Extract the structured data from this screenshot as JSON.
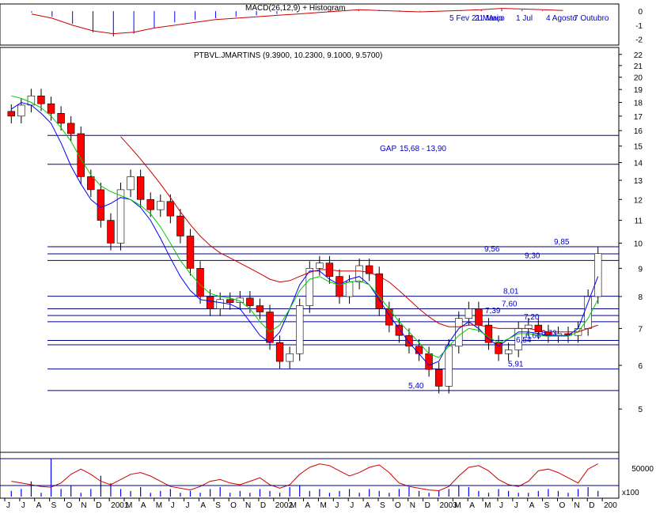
{
  "colors": {
    "up": "#ffffff",
    "down": "#ff0000",
    "outline": "#000000",
    "ma_blue": "#0000ff",
    "ma_green": "#00cc00",
    "ma_red": "#cc0000",
    "ma_magenta": "#cc00cc",
    "hline": "#00008b",
    "ann": "#0000cc",
    "volume": "#0000ff",
    "stoch_line": "#cc0000"
  },
  "chart_data": [
    {
      "type": "bar",
      "panel": "macd",
      "title": "MACD(26,12,9) + Histogram",
      "y_ticks": [
        "0",
        "-1",
        "-2"
      ],
      "y_tick_values": [
        0,
        -1,
        -2
      ],
      "ylim": [
        -2.3,
        0.4
      ],
      "overlay_text": [
        "5 Fev",
        "21 Março",
        "1 Jul",
        "4 Agosto",
        "7 Outubro",
        "21 Maio"
      ],
      "histogram": [
        -0.1,
        -0.4,
        -0.9,
        -1.5,
        -1.8,
        -1.6,
        -1.2,
        -0.8,
        -0.6,
        -0.5,
        -0.4,
        -0.3,
        -0.2,
        -0.1,
        0.0,
        0.05,
        0.1,
        0.08,
        0.05,
        0.03,
        0.02,
        0.05,
        0.1,
        0.15,
        0.1,
        0.05,
        0.0
      ],
      "macd_line": [
        -0.2,
        -0.5,
        -1.0,
        -1.4,
        -1.6,
        -1.5,
        -1.2,
        -1.0,
        -0.8,
        -0.6,
        -0.5,
        -0.4,
        -0.3,
        -0.2,
        -0.1,
        0.0,
        0.1,
        0.05,
        0.0,
        -0.05,
        0.0,
        0.05,
        0.1,
        0.2,
        0.15,
        0.1,
        0.05
      ]
    },
    {
      "type": "candlestick",
      "panel": "price",
      "title": "PTBVL.JMARTINS (9.3900, 10.2300, 9.1000, 9.5700)",
      "scale": "log",
      "ylim": [
        4.2,
        22.5
      ],
      "y_ticks": [
        "22",
        "21",
        "20",
        "19",
        "18",
        "17",
        "16",
        "15",
        "14",
        "13",
        "12",
        "11",
        "10",
        "9",
        "8",
        "7",
        "6",
        "5"
      ],
      "y_tick_values": [
        22,
        21,
        20,
        19,
        18,
        17,
        16,
        15,
        14,
        13,
        12,
        11,
        10,
        9,
        8,
        7,
        6,
        5
      ],
      "x_ticks": [
        "J",
        "J",
        "A",
        "S",
        "O",
        "N",
        "D",
        "2001",
        "M",
        "A",
        "M",
        "J",
        "J",
        "A",
        "S",
        "O",
        "N",
        "D",
        "2002",
        "M",
        "A",
        "M",
        "J",
        "J",
        "A",
        "S",
        "O",
        "N",
        "D",
        "2003",
        "M",
        "A",
        "M",
        "J",
        "J",
        "A",
        "S",
        "O",
        "N",
        "D",
        "200"
      ],
      "close": [
        17.0,
        17.8,
        18.5,
        17.9,
        17.2,
        16.5,
        15.8,
        13.2,
        12.5,
        11.0,
        10.0,
        12.5,
        13.2,
        12.0,
        11.5,
        11.9,
        11.2,
        10.3,
        9.0,
        8.0,
        7.6,
        7.9,
        7.8,
        7.95,
        7.7,
        7.5,
        6.6,
        6.1,
        6.3,
        7.7,
        9.0,
        9.2,
        8.7,
        8.0,
        8.5,
        9.1,
        8.8,
        7.6,
        7.1,
        6.8,
        6.5,
        6.3,
        5.9,
        5.5,
        6.5,
        7.3,
        7.6,
        7.1,
        6.6,
        6.3,
        6.4,
        7.0,
        7.1,
        6.9,
        6.8,
        6.85,
        6.8,
        7.0,
        8.0,
        9.57
      ],
      "moving_averages": [
        {
          "color": "ma_blue",
          "values": [
            17.5,
            18.0,
            17.8,
            17.2,
            16.5,
            15.2,
            13.8,
            12.8,
            12.0,
            11.6,
            11.8,
            12.1,
            12.0,
            11.6,
            11.0,
            10.2,
            9.4,
            8.7,
            8.2,
            7.9,
            7.85,
            7.8,
            7.75,
            7.6,
            7.2,
            6.8,
            6.6,
            6.9,
            7.6,
            8.4,
            8.9,
            8.9,
            8.6,
            8.4,
            8.6,
            8.7,
            8.4,
            7.9,
            7.4,
            7.0,
            6.6,
            6.3,
            6.0,
            6.1,
            6.6,
            7.0,
            7.2,
            7.0,
            6.7,
            6.5,
            6.7,
            6.9,
            6.9,
            6.85,
            6.8,
            6.8,
            6.8,
            7.0,
            7.8,
            8.7
          ]
        },
        {
          "color": "ma_green",
          "values": [
            18.5,
            18.3,
            18.0,
            17.6,
            17.0,
            16.2,
            15.3,
            14.2,
            13.3,
            12.7,
            12.4,
            12.2,
            12.0,
            11.7,
            11.3,
            10.7,
            10.0,
            9.3,
            8.8,
            8.4,
            8.1,
            8.0,
            7.95,
            7.85,
            7.6,
            7.2,
            6.9,
            7.1,
            7.6,
            8.2,
            8.6,
            8.7,
            8.5,
            8.4,
            8.5,
            8.55,
            8.4,
            8.0,
            7.6,
            7.2,
            6.9,
            6.6,
            6.3,
            6.2,
            6.5,
            6.8,
            7.0,
            6.95,
            6.75,
            6.6,
            6.7,
            6.85,
            6.85,
            6.8,
            6.78,
            6.78,
            6.78,
            6.9,
            7.3,
            7.9
          ]
        },
        {
          "color": "ma_red",
          "values": [
            null,
            null,
            null,
            null,
            null,
            null,
            null,
            null,
            null,
            null,
            null,
            15.6,
            14.9,
            14.2,
            13.5,
            12.8,
            12.1,
            11.4,
            10.8,
            10.3,
            9.9,
            9.6,
            9.4,
            9.2,
            9.0,
            8.8,
            8.6,
            8.5,
            8.55,
            8.7,
            8.85,
            8.95,
            8.95,
            8.9,
            8.9,
            8.9,
            8.85,
            8.7,
            8.5,
            8.2,
            7.9,
            7.6,
            7.35,
            7.15,
            7.05,
            7.05,
            7.1,
            7.1,
            7.05,
            7.0,
            7.0,
            7.0,
            7.0,
            6.95,
            6.9,
            6.9,
            6.9,
            6.9,
            7.0,
            7.1
          ]
        }
      ],
      "horizontal_lines": [
        15.68,
        13.9,
        9.85,
        9.56,
        9.3,
        8.01,
        7.6,
        7.39,
        7.2,
        6.66,
        6.54,
        5.91,
        5.4
      ],
      "annotations": [
        {
          "text": "GAP",
          "value": 14.55
        },
        {
          "text": "15,68 - 13,90",
          "value": 14.55
        },
        {
          "text": "9,85",
          "value": 9.85
        },
        {
          "text": "9,56",
          "value": 9.56
        },
        {
          "text": "9,30",
          "value": 9.3
        },
        {
          "text": "8,01",
          "value": 8.01
        },
        {
          "text": "7,60",
          "value": 7.6
        },
        {
          "text": "7,39",
          "value": 7.39
        },
        {
          "text": "7,20",
          "value": 7.2
        },
        {
          "text": "6,66",
          "value": 6.66
        },
        {
          "text": "6,73",
          "value": 6.73
        },
        {
          "text": "6,54",
          "value": 6.54
        },
        {
          "text": "5,91",
          "value": 5.91
        },
        {
          "text": "5,40",
          "value": 5.4
        }
      ]
    },
    {
      "type": "bar",
      "panel": "volume",
      "y_ticks": [
        "50000"
      ],
      "y_tick_values": [
        50000
      ],
      "unit_label": "x100",
      "values": [
        0.15,
        0.2,
        0.4,
        0.1,
        1.0,
        0.2,
        0.3,
        0.1,
        0.2,
        0.55,
        0.35,
        0.2,
        0.15,
        0.25,
        0.1,
        0.15,
        0.2,
        0.1,
        0.15,
        0.1,
        0.2,
        0.25,
        0.1,
        0.15,
        0.1,
        0.2,
        0.15,
        0.1,
        0.25,
        0.3,
        0.15,
        0.2,
        0.1,
        0.15,
        0.2,
        0.1,
        0.2,
        0.15,
        0.1,
        0.2,
        0.25,
        0.15,
        0.1,
        0.15,
        0.2,
        0.3,
        0.25,
        0.15,
        0.1,
        0.2,
        0.15,
        0.1,
        0.1,
        0.15,
        0.2,
        0.15,
        0.1,
        0.2,
        0.25,
        0.15
      ],
      "stochastic": [
        35,
        30,
        25,
        20,
        18,
        30,
        55,
        70,
        55,
        35,
        25,
        40,
        55,
        60,
        50,
        35,
        20,
        15,
        10,
        20,
        35,
        40,
        30,
        25,
        35,
        45,
        25,
        15,
        25,
        55,
        75,
        85,
        80,
        65,
        50,
        60,
        75,
        82,
        60,
        30,
        20,
        15,
        10,
        8,
        20,
        50,
        75,
        80,
        65,
        40,
        25,
        20,
        35,
        65,
        70,
        60,
        45,
        30,
        70,
        85
      ]
    }
  ]
}
